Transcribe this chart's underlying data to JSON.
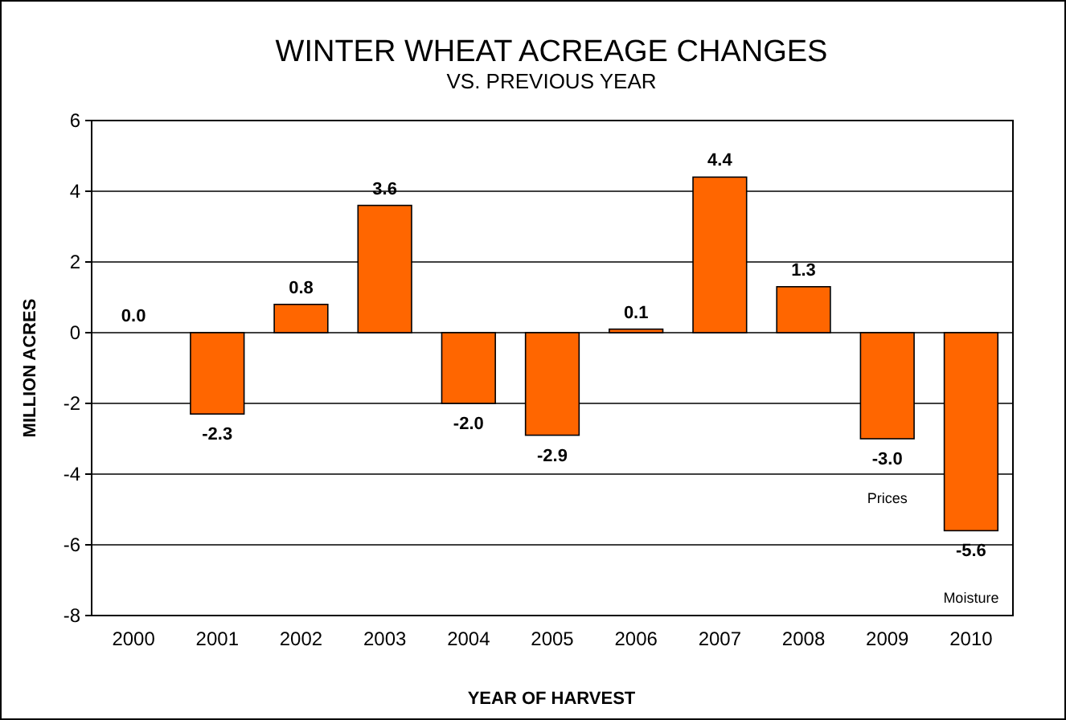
{
  "chart_data": {
    "type": "bar",
    "title": "WINTER WHEAT ACREAGE CHANGES",
    "subtitle": "VS. PREVIOUS YEAR",
    "xlabel": "YEAR OF HARVEST",
    "ylabel": "MILLION ACRES",
    "categories": [
      "2000",
      "2001",
      "2002",
      "2003",
      "2004",
      "2005",
      "2006",
      "2007",
      "2008",
      "2009",
      "2010"
    ],
    "values": [
      0.0,
      -2.3,
      0.8,
      3.6,
      -2.0,
      -2.9,
      0.1,
      4.4,
      1.3,
      -3.0,
      -5.6
    ],
    "value_labels": [
      "0.0",
      "-2.3",
      "0.8",
      "3.6",
      "-2.0",
      "-2.9",
      "0.1",
      "4.4",
      "1.3",
      "-3.0",
      "-5.6"
    ],
    "color": "#ff6600",
    "ylim": [
      -8,
      6
    ],
    "yticks": [
      -8,
      -6,
      -4,
      -2,
      0,
      2,
      4,
      6
    ],
    "grid": "y",
    "annotations": [
      "Prices",
      "Moisture"
    ]
  }
}
